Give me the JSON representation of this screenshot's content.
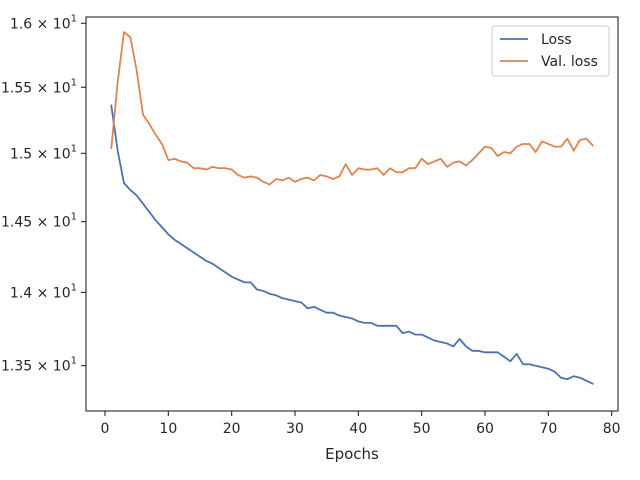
{
  "chart_data": {
    "type": "line",
    "xlabel": "Epochs",
    "ylabel": "",
    "xlim": [
      -3,
      81
    ],
    "ylim": [
      13.2,
      16.05
    ],
    "yscale": "log",
    "grid": false,
    "legend_position": "top-right",
    "x_ticks": [
      0,
      10,
      20,
      30,
      40,
      50,
      60,
      70,
      80
    ],
    "x_tick_labels": [
      "0",
      "10",
      "20",
      "30",
      "40",
      "50",
      "60",
      "70",
      "80"
    ],
    "y_ticks": [
      13.5,
      14.0,
      14.5,
      15.0,
      15.5,
      16.0
    ],
    "y_tick_labels": [
      "1.35",
      "1.4",
      "1.45",
      "1.5",
      "1.55",
      "1.6"
    ],
    "y_tick_multiplier": "× 10",
    "y_tick_exponent": "1",
    "series": [
      {
        "name": "Loss",
        "color": "#4c72b0",
        "x": [
          1,
          2,
          3,
          4,
          5,
          6,
          7,
          8,
          9,
          10,
          11,
          12,
          13,
          14,
          15,
          16,
          17,
          18,
          19,
          20,
          21,
          22,
          23,
          24,
          25,
          26,
          27,
          28,
          29,
          30,
          31,
          32,
          33,
          34,
          35,
          36,
          37,
          38,
          39,
          40,
          41,
          42,
          43,
          44,
          45,
          46,
          47,
          48,
          49,
          50,
          51,
          52,
          53,
          54,
          55,
          56,
          57,
          58,
          59,
          60,
          61,
          62,
          63,
          64,
          65,
          66,
          67,
          68,
          69,
          70,
          71,
          72,
          73,
          74,
          75,
          76,
          77
        ],
        "values": [
          15.36,
          15.02,
          14.78,
          14.73,
          14.69,
          14.63,
          14.57,
          14.51,
          14.46,
          14.41,
          14.37,
          14.34,
          14.31,
          14.28,
          14.25,
          14.22,
          14.2,
          14.17,
          14.14,
          14.11,
          14.09,
          14.07,
          14.07,
          14.02,
          14.01,
          13.99,
          13.98,
          13.96,
          13.95,
          13.94,
          13.93,
          13.89,
          13.9,
          13.88,
          13.86,
          13.86,
          13.84,
          13.83,
          13.82,
          13.8,
          13.79,
          13.79,
          13.77,
          13.77,
          13.77,
          13.77,
          13.72,
          13.73,
          13.71,
          13.71,
          13.69,
          13.67,
          13.66,
          13.65,
          13.63,
          13.68,
          13.63,
          13.6,
          13.6,
          13.59,
          13.59,
          13.59,
          13.56,
          13.53,
          13.58,
          13.51,
          13.51,
          13.5,
          13.49,
          13.48,
          13.46,
          13.42,
          13.41,
          13.43,
          13.42,
          13.4,
          13.38
        ]
      },
      {
        "name": "Val. loss",
        "color": "#dd8452",
        "x": [
          1,
          2,
          3,
          4,
          5,
          6,
          7,
          8,
          9,
          10,
          11,
          12,
          13,
          14,
          15,
          16,
          17,
          18,
          19,
          20,
          21,
          22,
          23,
          24,
          25,
          26,
          27,
          28,
          29,
          30,
          31,
          32,
          33,
          34,
          35,
          36,
          37,
          38,
          39,
          40,
          41,
          42,
          43,
          44,
          45,
          46,
          47,
          48,
          49,
          50,
          51,
          52,
          53,
          54,
          55,
          56,
          57,
          58,
          59,
          60,
          61,
          62,
          63,
          64,
          65,
          66,
          67,
          68,
          69,
          70,
          71,
          72,
          73,
          74,
          75,
          76,
          77
        ],
        "values": [
          15.04,
          15.54,
          15.93,
          15.89,
          15.63,
          15.29,
          15.22,
          15.14,
          15.07,
          14.95,
          14.96,
          14.94,
          14.93,
          14.89,
          14.89,
          14.88,
          14.9,
          14.89,
          14.89,
          14.88,
          14.84,
          14.82,
          14.83,
          14.82,
          14.79,
          14.77,
          14.81,
          14.8,
          14.82,
          14.79,
          14.81,
          14.82,
          14.8,
          14.84,
          14.83,
          14.81,
          14.83,
          14.92,
          14.84,
          14.89,
          14.88,
          14.88,
          14.89,
          14.84,
          14.89,
          14.86,
          14.86,
          14.89,
          14.89,
          14.96,
          14.92,
          14.94,
          14.96,
          14.9,
          14.93,
          14.94,
          14.91,
          14.95,
          15.0,
          15.05,
          15.04,
          14.98,
          15.01,
          15.0,
          15.05,
          15.07,
          15.07,
          15.01,
          15.09,
          15.07,
          15.05,
          15.05,
          15.11,
          15.02,
          15.1,
          15.11,
          15.06
        ]
      }
    ]
  }
}
